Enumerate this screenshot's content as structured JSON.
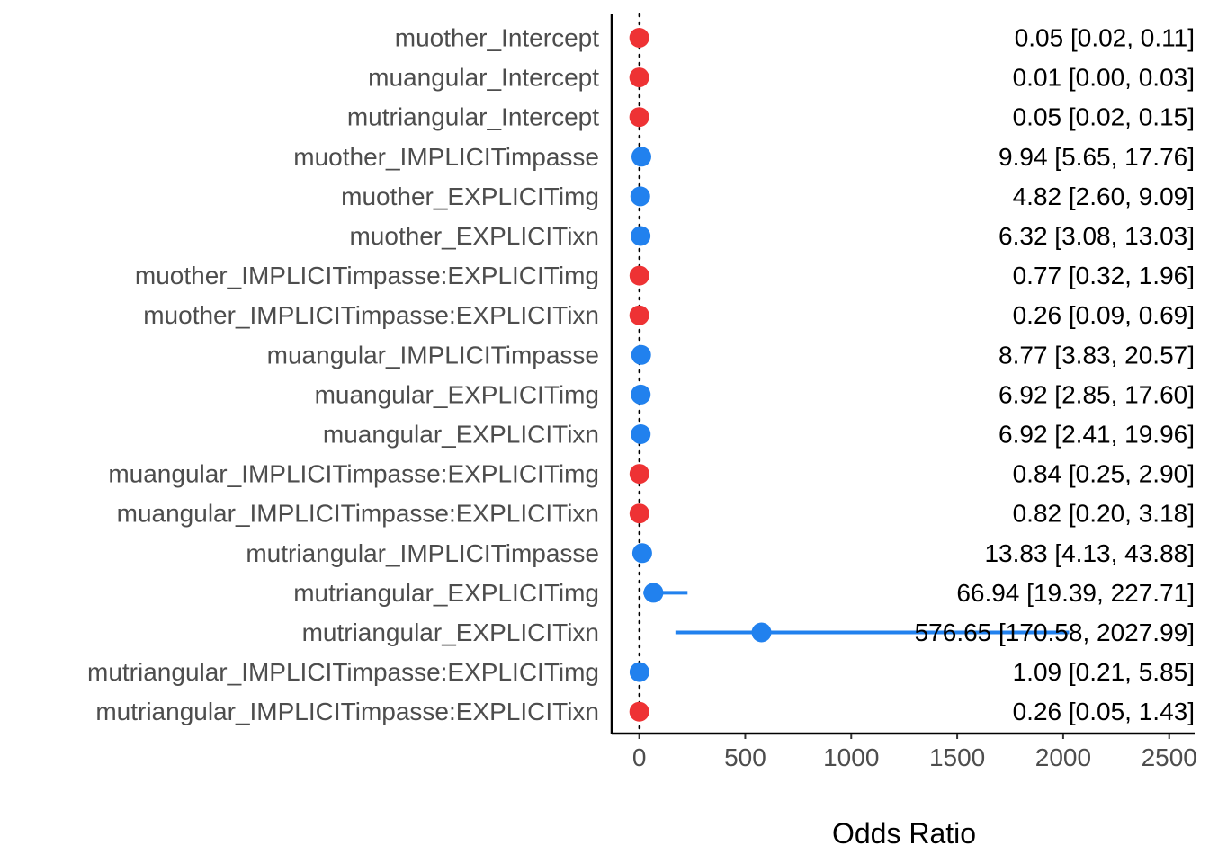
{
  "chart_data": {
    "type": "forest",
    "xlabel": "Odds Ratio",
    "xlim": [
      -130,
      2620
    ],
    "x_ticks": [
      0,
      500,
      1000,
      1500,
      2000,
      2500
    ],
    "x_tick_labels": [
      "0",
      "500",
      "1000",
      "1500",
      "2000",
      "2500"
    ],
    "reference_line": {
      "x": 1,
      "style": "dotted"
    },
    "colors": {
      "negative": "#EE3234",
      "positive": "#2181EE",
      "axis": "#000000"
    },
    "rows": [
      {
        "term": "muother_Intercept",
        "estimate": 0.05,
        "low": 0.02,
        "high": 0.11,
        "label": "0.05 [0.02, 0.11]",
        "direction": "negative"
      },
      {
        "term": "muangular_Intercept",
        "estimate": 0.01,
        "low": 0.0,
        "high": 0.03,
        "label": "0.01 [0.00, 0.03]",
        "direction": "negative"
      },
      {
        "term": "mutriangular_Intercept",
        "estimate": 0.05,
        "low": 0.02,
        "high": 0.15,
        "label": "0.05 [0.02, 0.15]",
        "direction": "negative"
      },
      {
        "term": "muother_IMPLICITimpasse",
        "estimate": 9.94,
        "low": 5.65,
        "high": 17.76,
        "label": "9.94 [5.65, 17.76]",
        "direction": "positive"
      },
      {
        "term": "muother_EXPLICITimg",
        "estimate": 4.82,
        "low": 2.6,
        "high": 9.09,
        "label": "4.82 [2.60, 9.09]",
        "direction": "positive"
      },
      {
        "term": "muother_EXPLICITixn",
        "estimate": 6.32,
        "low": 3.08,
        "high": 13.03,
        "label": "6.32 [3.08, 13.03]",
        "direction": "positive"
      },
      {
        "term": "muother_IMPLICITimpasse:EXPLICITimg",
        "estimate": 0.77,
        "low": 0.32,
        "high": 1.96,
        "label": "0.77 [0.32, 1.96]",
        "direction": "negative"
      },
      {
        "term": "muother_IMPLICITimpasse:EXPLICITixn",
        "estimate": 0.26,
        "low": 0.09,
        "high": 0.69,
        "label": "0.26 [0.09, 0.69]",
        "direction": "negative"
      },
      {
        "term": "muangular_IMPLICITimpasse",
        "estimate": 8.77,
        "low": 3.83,
        "high": 20.57,
        "label": "8.77 [3.83, 20.57]",
        "direction": "positive"
      },
      {
        "term": "muangular_EXPLICITimg",
        "estimate": 6.92,
        "low": 2.85,
        "high": 17.6,
        "label": "6.92 [2.85, 17.60]",
        "direction": "positive"
      },
      {
        "term": "muangular_EXPLICITixn",
        "estimate": 6.92,
        "low": 2.41,
        "high": 19.96,
        "label": "6.92 [2.41, 19.96]",
        "direction": "positive"
      },
      {
        "term": "muangular_IMPLICITimpasse:EXPLICITimg",
        "estimate": 0.84,
        "low": 0.25,
        "high": 2.9,
        "label": "0.84 [0.25, 2.90]",
        "direction": "negative"
      },
      {
        "term": "muangular_IMPLICITimpasse:EXPLICITixn",
        "estimate": 0.82,
        "low": 0.2,
        "high": 3.18,
        "label": "0.82 [0.20, 3.18]",
        "direction": "negative"
      },
      {
        "term": "mutriangular_IMPLICITimpasse",
        "estimate": 13.83,
        "low": 4.13,
        "high": 43.88,
        "label": "13.83 [4.13, 43.88]",
        "direction": "positive"
      },
      {
        "term": "mutriangular_EXPLICITimg",
        "estimate": 66.94,
        "low": 19.39,
        "high": 227.71,
        "label": "66.94 [19.39, 227.71]",
        "direction": "positive"
      },
      {
        "term": "mutriangular_EXPLICITixn",
        "estimate": 576.65,
        "low": 170.58,
        "high": 2027.99,
        "label": "576.65 [170.58, 2027.99]",
        "direction": "positive"
      },
      {
        "term": "mutriangular_IMPLICITimpasse:EXPLICITimg",
        "estimate": 1.09,
        "low": 0.21,
        "high": 5.85,
        "label": "1.09 [0.21, 5.85]",
        "direction": "positive"
      },
      {
        "term": "mutriangular_IMPLICITimpasse:EXPLICITixn",
        "estimate": 0.26,
        "low": 0.05,
        "high": 1.43,
        "label": "0.26 [0.05, 1.43]",
        "direction": "negative"
      }
    ]
  }
}
